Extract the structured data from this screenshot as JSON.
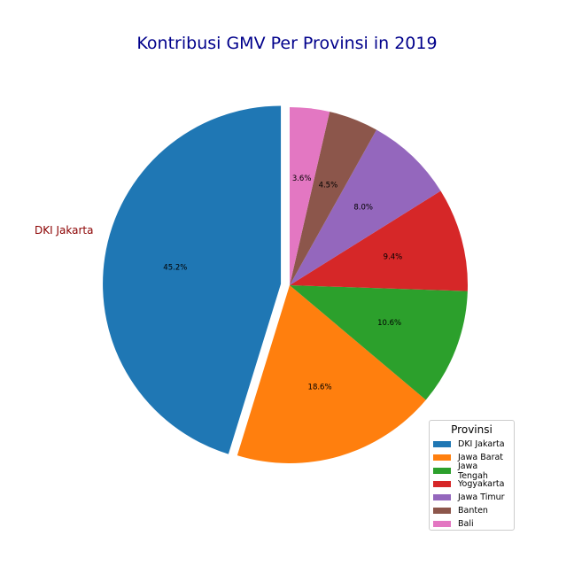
{
  "chart_data": {
    "type": "pie",
    "title": "Kontribusi GMV Per Provinsi in 2019",
    "categories": [
      "DKI Jakarta",
      "Jawa Barat",
      "Jawa Tengah",
      "Yogyakarta",
      "Jawa Timur",
      "Banten",
      "Bali"
    ],
    "values": [
      45.2,
      18.6,
      10.6,
      9.4,
      8.0,
      4.5,
      3.6
    ],
    "value_labels": [
      "45.2%",
      "18.6%",
      "10.6%",
      "9.4%",
      "8.0%",
      "4.5%",
      "3.6%"
    ],
    "colors": [
      "#1f77b4",
      "#ff7f0e",
      "#2ca02c",
      "#d62728",
      "#9467bd",
      "#8c564b",
      "#e377c2"
    ],
    "explode": [
      0.05,
      0,
      0,
      0,
      0,
      0,
      0
    ],
    "outer_labels": [
      "DKI Jakarta",
      "",
      "",
      "",
      "",
      "",
      ""
    ],
    "outer_label_color": "#8b0000",
    "title_color": "#00008b",
    "start_angle": 90,
    "direction": "counterclockwise",
    "legend": {
      "title": "Provinsi",
      "placement": "lower-right"
    }
  }
}
